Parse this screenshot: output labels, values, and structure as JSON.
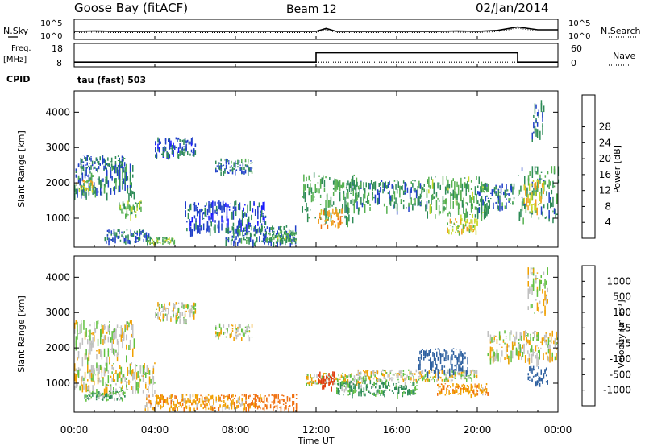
{
  "header": {
    "station": "Goose Bay (fitACF)",
    "beam": "Beam 12",
    "date": "02/Jan/2014"
  },
  "left_labels": {
    "nsky": "N.Sky",
    "freq": "Freq.",
    "freq_unit": "[MHz]",
    "cpid": "CPID",
    "cpid_value": "tau (fast) 503"
  },
  "right_labels": {
    "nsearch": "N.Search",
    "nave": "Nave"
  },
  "chart_data": [
    {
      "type": "line",
      "panel": "noise",
      "series": [
        {
          "name": "N.Sky",
          "style": "solid"
        },
        {
          "name": "N.Search",
          "style": "dotted"
        }
      ],
      "yticks_left": [
        "10^5",
        "10^0"
      ],
      "yticks_right": [
        "10^5",
        "10^0"
      ],
      "x_hours": [
        0,
        1,
        2,
        3,
        4,
        5,
        6,
        7,
        8,
        9,
        10,
        11,
        12,
        12.5,
        13,
        14,
        15,
        16,
        17,
        18,
        19,
        20,
        21,
        22,
        23,
        24
      ],
      "values_frac": [
        0.6,
        0.58,
        0.6,
        0.6,
        0.6,
        0.59,
        0.6,
        0.6,
        0.6,
        0.59,
        0.6,
        0.6,
        0.6,
        0.45,
        0.6,
        0.6,
        0.6,
        0.6,
        0.6,
        0.6,
        0.58,
        0.6,
        0.55,
        0.38,
        0.52,
        0.52
      ]
    },
    {
      "type": "line",
      "panel": "frequency",
      "series": [
        {
          "name": "Freq.",
          "style": "solid"
        },
        {
          "name": "Nave",
          "style": "dotted"
        }
      ],
      "yticks_left": [
        "18",
        "8"
      ],
      "yticks_right": [
        "60",
        "0"
      ],
      "freq_steps": [
        {
          "from": 0,
          "to": 12,
          "value": 10
        },
        {
          "from": 12,
          "to": 22,
          "value": 14
        },
        {
          "from": 22,
          "to": 24,
          "value": 10
        }
      ],
      "nave_steps": [
        {
          "from": 0,
          "to": 24,
          "value": 12
        }
      ]
    },
    {
      "type": "heatmap",
      "panel": "power",
      "ylabel": "Slant Range [km]",
      "yticks": [
        1000,
        2000,
        3000,
        4000
      ],
      "ylim": [
        180,
        4600
      ],
      "xlim": [
        0,
        24
      ],
      "colorbar": {
        "label": "Power [dB]",
        "ticks": [
          "4",
          "8",
          "12",
          "16",
          "20",
          "24",
          "28"
        ],
        "colors": [
          "#1a1aff",
          "#2040c8",
          "#2e8b57",
          "#55b050",
          "#c8d828",
          "#f0a020",
          "#f07010",
          "#e03018",
          "#e00000"
        ]
      },
      "regions": [
        {
          "t0": 0.0,
          "t1": 3.0,
          "r0": 1700,
          "r1": 2550,
          "p": 9
        },
        {
          "t0": 0.3,
          "t1": 2.5,
          "r0": 2400,
          "r1": 2800,
          "p": 8
        },
        {
          "t0": 0.1,
          "t1": 0.9,
          "r0": 1800,
          "r1": 2100,
          "p": 17
        },
        {
          "t0": 2.2,
          "t1": 3.3,
          "r0": 1050,
          "r1": 1500,
          "p": 14
        },
        {
          "t0": 1.5,
          "t1": 3.8,
          "r0": 350,
          "r1": 700,
          "p": 8
        },
        {
          "t0": 3.6,
          "t1": 5.0,
          "r0": 300,
          "r1": 480,
          "p": 14
        },
        {
          "t0": 4.0,
          "t1": 6.0,
          "r0": 2800,
          "r1": 3300,
          "p": 7
        },
        {
          "t0": 7.0,
          "t1": 8.8,
          "r0": 2300,
          "r1": 2700,
          "p": 9
        },
        {
          "t0": 5.5,
          "t1": 9.5,
          "r0": 700,
          "r1": 1500,
          "p": 6
        },
        {
          "t0": 7.5,
          "t1": 11.0,
          "r0": 300,
          "r1": 800,
          "p": 9
        },
        {
          "t0": 9.5,
          "t1": 11.0,
          "r0": 400,
          "r1": 650,
          "p": 13
        },
        {
          "t0": 11.3,
          "t1": 14.0,
          "r0": 1000,
          "r1": 2300,
          "p": 12
        },
        {
          "t0": 12.1,
          "t1": 13.3,
          "r0": 800,
          "r1": 1300,
          "p": 23
        },
        {
          "t0": 13.5,
          "t1": 17.5,
          "r0": 1300,
          "r1": 2100,
          "p": 10
        },
        {
          "t0": 17.5,
          "t1": 20.5,
          "r0": 1100,
          "r1": 2200,
          "p": 13
        },
        {
          "t0": 18.5,
          "t1": 20.0,
          "r0": 600,
          "r1": 1000,
          "p": 18
        },
        {
          "t0": 20.0,
          "t1": 21.8,
          "r0": 1300,
          "r1": 2000,
          "p": 9
        },
        {
          "t0": 22.0,
          "t1": 24.0,
          "r0": 1000,
          "r1": 2500,
          "p": 11
        },
        {
          "t0": 22.3,
          "t1": 23.3,
          "r0": 1300,
          "r1": 2100,
          "p": 20
        },
        {
          "t0": 22.7,
          "t1": 23.3,
          "r0": 3400,
          "r1": 4400,
          "p": 8
        }
      ]
    },
    {
      "type": "heatmap",
      "panel": "velocity",
      "ylabel": "Slant Range [km]",
      "yticks": [
        1000,
        2000,
        3000,
        4000
      ],
      "ylim": [
        180,
        4600
      ],
      "xlabel": "Time UT",
      "xticks": [
        "00:00",
        "04:00",
        "08:00",
        "12:00",
        "16:00",
        "20:00",
        "00:00"
      ],
      "xlim": [
        0,
        24
      ],
      "colorbar": {
        "label": "Velocity [m s⁻¹]",
        "ticks": [
          "1000",
          "500",
          "100",
          "25",
          "-25",
          "-100",
          "-500",
          "-1000"
        ],
        "colors": [
          "#1a40b8",
          "#2e60a0",
          "#2e8b57",
          "#60c040",
          "#c0c0c0",
          "#f0a000",
          "#f07010",
          "#e04010",
          "#e00000"
        ]
      },
      "regions": [
        {
          "t0": 0.0,
          "t1": 3.0,
          "r0": 1700,
          "r1": 2800,
          "v": 0
        },
        {
          "t0": 4.0,
          "t1": 6.0,
          "r0": 2800,
          "r1": 3300,
          "v": 0
        },
        {
          "t0": 7.0,
          "t1": 8.8,
          "r0": 2300,
          "r1": 2700,
          "v": 0
        },
        {
          "t0": 0.0,
          "t1": 4.0,
          "r0": 800,
          "r1": 1600,
          "v": 0
        },
        {
          "t0": 0.5,
          "t1": 2.5,
          "r0": 550,
          "r1": 800,
          "v": 60
        },
        {
          "t0": 3.5,
          "t1": 8.5,
          "r0": 300,
          "r1": 700,
          "v": -70
        },
        {
          "t0": 8.5,
          "t1": 11.0,
          "r0": 300,
          "r1": 700,
          "v": -150
        },
        {
          "t0": 11.5,
          "t1": 14.5,
          "r0": 1000,
          "r1": 1300,
          "v": 0
        },
        {
          "t0": 12.1,
          "t1": 12.9,
          "r0": 850,
          "r1": 1350,
          "v": -500
        },
        {
          "t0": 13.0,
          "t1": 17.0,
          "r0": 700,
          "r1": 1100,
          "v": 80
        },
        {
          "t0": 14.0,
          "t1": 20.0,
          "r0": 1100,
          "r1": 1400,
          "v": 0
        },
        {
          "t0": 17.0,
          "t1": 19.5,
          "r0": 1300,
          "r1": 2000,
          "v": 600
        },
        {
          "t0": 18.0,
          "t1": 20.5,
          "r0": 700,
          "r1": 1000,
          "v": -80
        },
        {
          "t0": 20.5,
          "t1": 24.0,
          "r0": 1700,
          "r1": 2500,
          "v": 0
        },
        {
          "t0": 22.5,
          "t1": 23.5,
          "r0": 1000,
          "r1": 1500,
          "v": 400
        },
        {
          "t0": 22.5,
          "t1": 23.5,
          "r0": 3000,
          "r1": 4300,
          "v": 0
        }
      ]
    }
  ]
}
